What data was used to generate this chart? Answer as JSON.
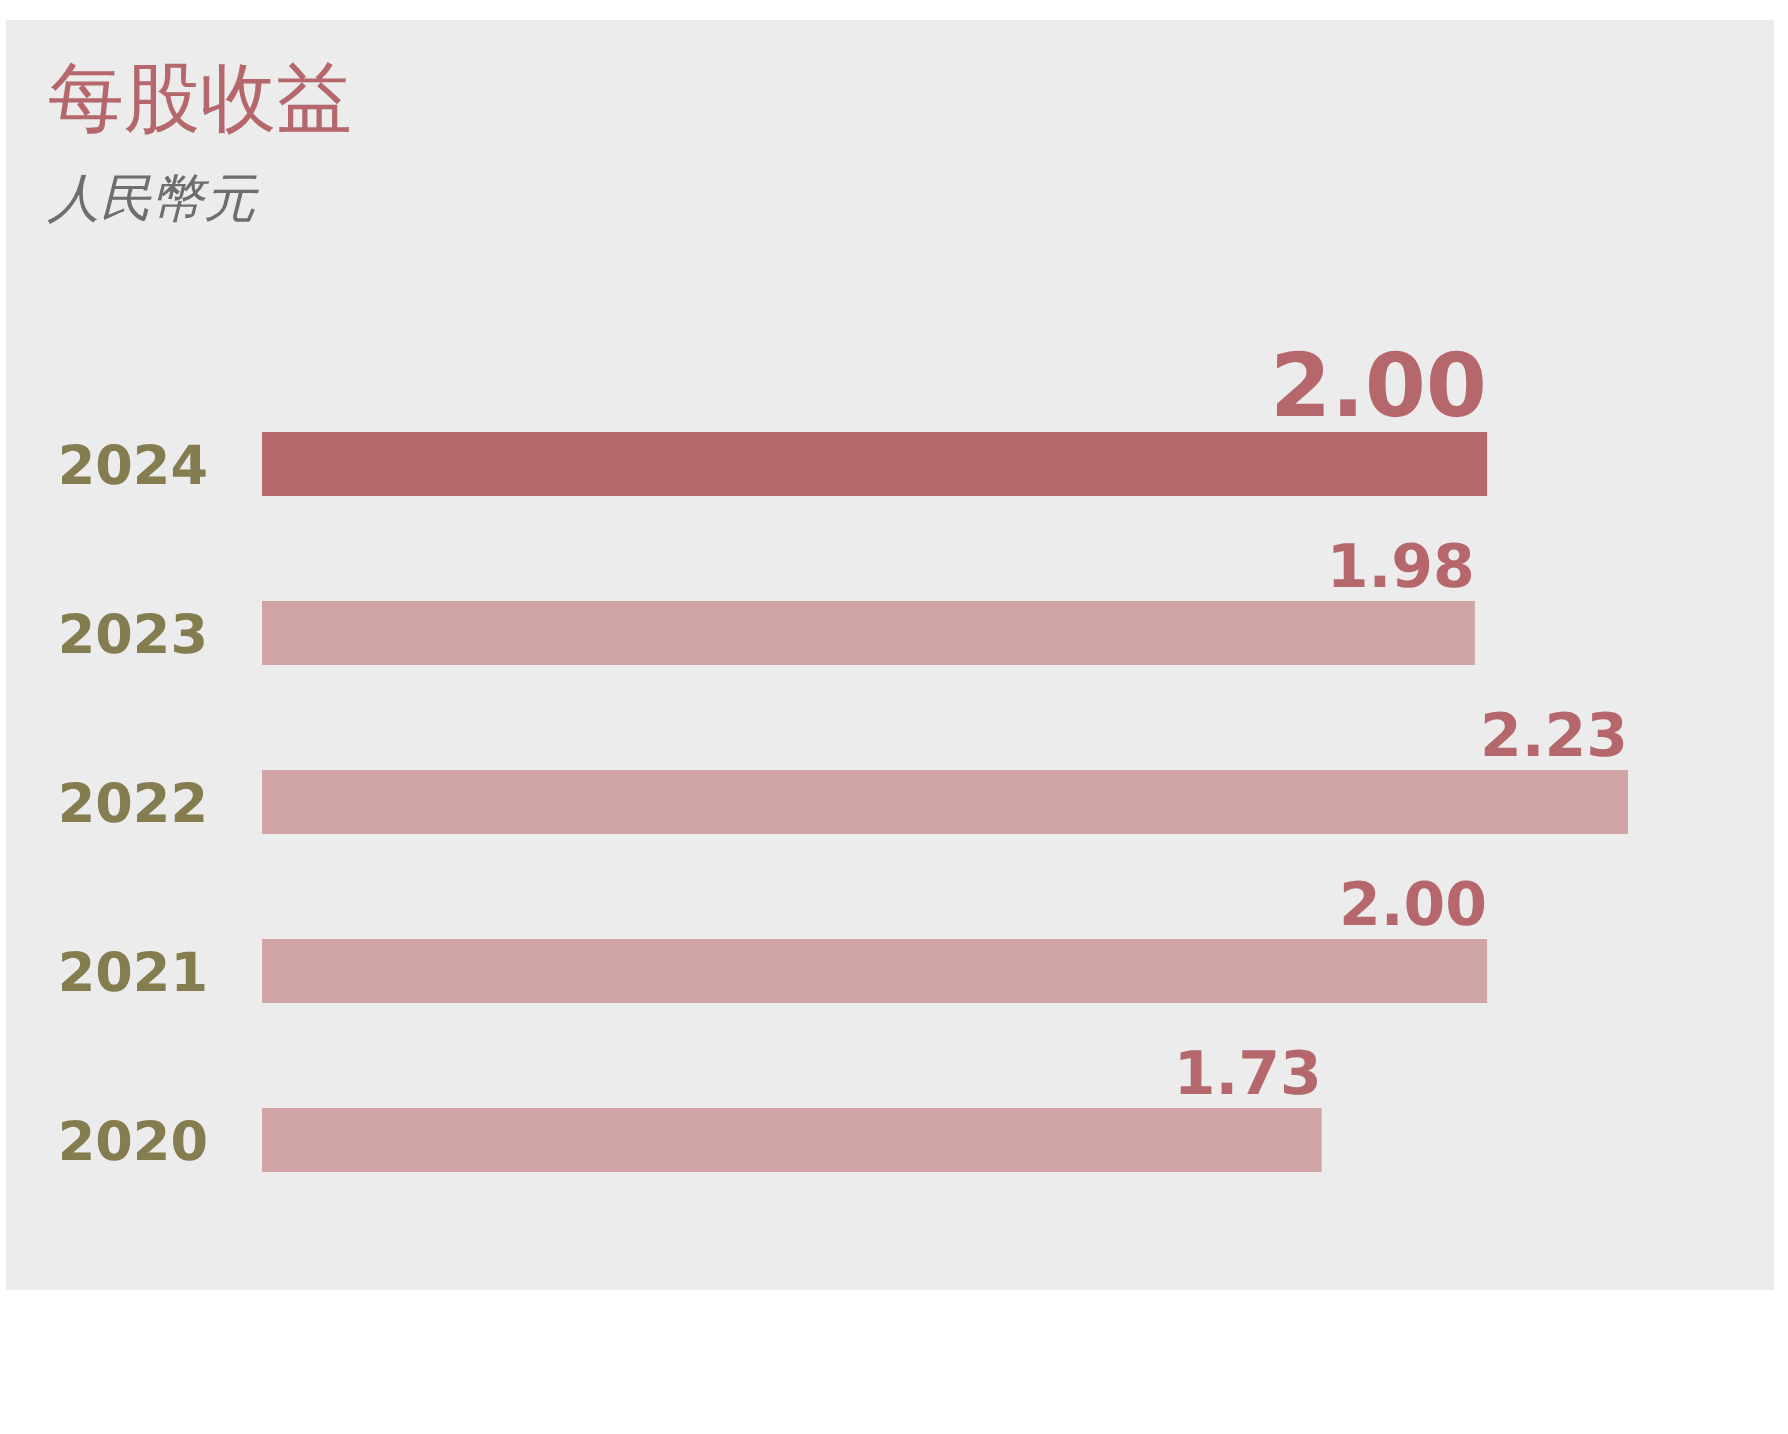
{
  "chart_data": {
    "type": "bar",
    "orientation": "horizontal",
    "title": "每股收益",
    "subtitle": "人民幣元",
    "categories": [
      "2024",
      "2023",
      "2022",
      "2021",
      "2020"
    ],
    "values": [
      2.0,
      1.98,
      2.23,
      2.0,
      1.73
    ],
    "value_labels": [
      "2.00",
      "1.98",
      "2.23",
      "2.00",
      "1.73"
    ],
    "colors": [
      "#b5676c",
      "#d1a5a6",
      "#d1a5a6",
      "#d1a5a6",
      "#d1a5a6"
    ]
  }
}
